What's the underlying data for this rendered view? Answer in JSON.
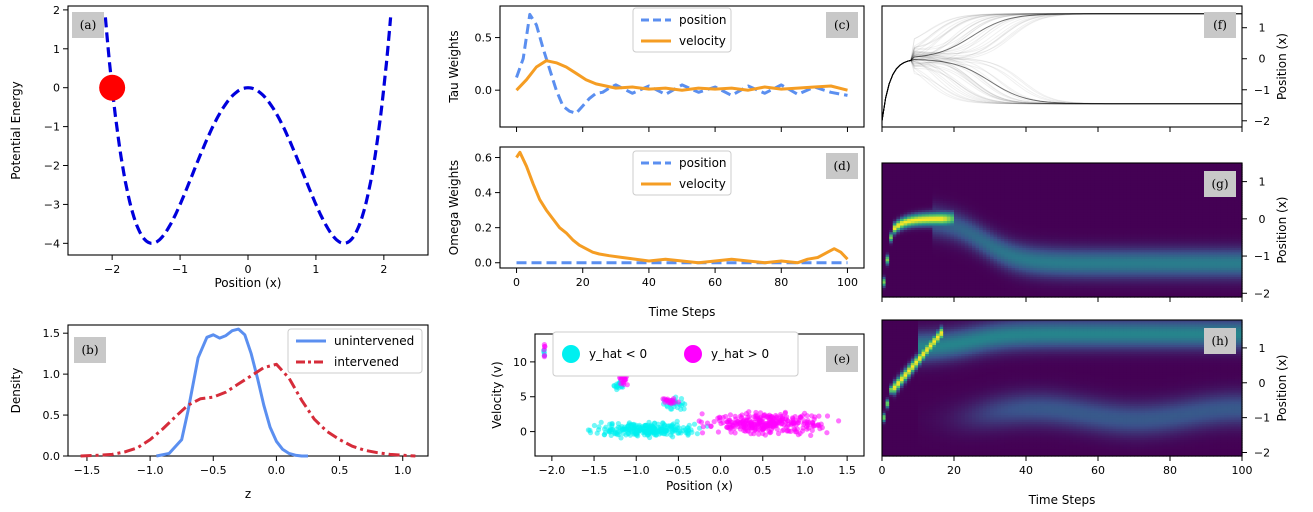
{
  "chart_data": [
    {
      "id": "a",
      "panel_label": "(a)",
      "type": "line",
      "xlabel": "Position (x)",
      "ylabel": "Potential Energy",
      "xlim": [
        -2.65,
        2.65
      ],
      "ylim": [
        -4.3,
        2.1
      ],
      "xticks": [
        -2,
        -1,
        0,
        1,
        2
      ],
      "yticks": [
        -4,
        -3,
        -2,
        -1,
        0,
        1,
        2
      ],
      "function": "x^4 - 4x^2",
      "x_range": [
        -2.1,
        2.1
      ],
      "marker": {
        "x": -2.0,
        "y": 0.0,
        "color": "#ff0000"
      },
      "series_color": "#0000dd"
    },
    {
      "id": "b",
      "panel_label": "(b)",
      "type": "line",
      "xlabel": "z",
      "ylabel": "Density",
      "xlim": [
        -1.65,
        1.2
      ],
      "ylim": [
        0,
        1.6
      ],
      "xticks": [
        -1.5,
        -1.0,
        -0.5,
        0.0,
        0.5,
        1.0
      ],
      "yticks": [
        0.0,
        0.5,
        1.0,
        1.5
      ],
      "legend": "top-right",
      "series": [
        {
          "name": "unintervened",
          "color": "#5b8ff0",
          "dash": "solid",
          "x": [
            -0.95,
            -0.85,
            -0.75,
            -0.7,
            -0.62,
            -0.55,
            -0.5,
            -0.45,
            -0.4,
            -0.35,
            -0.3,
            -0.25,
            -0.2,
            -0.15,
            -0.1,
            -0.05,
            0.0,
            0.05,
            0.1,
            0.15,
            0.2,
            0.25
          ],
          "y": [
            0.0,
            0.03,
            0.2,
            0.55,
            1.2,
            1.45,
            1.48,
            1.44,
            1.47,
            1.53,
            1.55,
            1.48,
            1.25,
            0.95,
            0.62,
            0.35,
            0.18,
            0.08,
            0.03,
            0.01,
            0.0,
            0.0
          ]
        },
        {
          "name": "intervened",
          "color": "#d62c3a",
          "dash": "dashdot",
          "x": [
            -1.55,
            -1.4,
            -1.3,
            -1.2,
            -1.1,
            -1.0,
            -0.9,
            -0.8,
            -0.7,
            -0.6,
            -0.5,
            -0.4,
            -0.3,
            -0.2,
            -0.1,
            0.0,
            0.1,
            0.2,
            0.3,
            0.4,
            0.5,
            0.6,
            0.7,
            0.8,
            0.9,
            1.0,
            1.1
          ],
          "y": [
            0.0,
            0.01,
            0.02,
            0.05,
            0.1,
            0.2,
            0.33,
            0.48,
            0.62,
            0.7,
            0.72,
            0.78,
            0.88,
            0.98,
            1.08,
            1.12,
            0.95,
            0.68,
            0.45,
            0.3,
            0.2,
            0.12,
            0.07,
            0.04,
            0.02,
            0.01,
            0.0
          ]
        }
      ]
    },
    {
      "id": "c",
      "panel_label": "(c)",
      "type": "line",
      "xlabel": "",
      "ylabel": "Tau Weights",
      "xlim": [
        -5,
        105
      ],
      "ylim": [
        -0.35,
        0.8
      ],
      "xticks": [
        0,
        20,
        40,
        60,
        80,
        100
      ],
      "yticks": [
        0.0,
        0.5
      ],
      "legend": "top-center",
      "series": [
        {
          "name": "position",
          "color": "#5b8ff0",
          "dash": "dashed",
          "x": [
            0,
            2,
            4,
            6,
            8,
            10,
            12,
            14,
            16,
            18,
            20,
            22,
            24,
            26,
            28,
            30,
            35,
            40,
            45,
            50,
            55,
            60,
            65,
            70,
            75,
            80,
            85,
            90,
            95,
            100
          ],
          "y": [
            0.12,
            0.3,
            0.72,
            0.62,
            0.4,
            0.2,
            0.0,
            -0.15,
            -0.2,
            -0.22,
            -0.15,
            -0.08,
            -0.03,
            -0.02,
            0.02,
            0.05,
            -0.03,
            0.04,
            -0.04,
            0.05,
            -0.02,
            0.03,
            -0.05,
            0.04,
            -0.03,
            0.05,
            -0.04,
            0.03,
            -0.02,
            -0.05
          ]
        },
        {
          "name": "velocity",
          "color": "#f59d23",
          "dash": "solid",
          "x": [
            0,
            3,
            6,
            9,
            12,
            15,
            18,
            21,
            24,
            27,
            30,
            35,
            40,
            45,
            50,
            55,
            60,
            65,
            70,
            75,
            80,
            85,
            90,
            95,
            100
          ],
          "y": [
            0.0,
            0.1,
            0.22,
            0.28,
            0.26,
            0.22,
            0.16,
            0.1,
            0.06,
            0.04,
            0.02,
            0.03,
            0.01,
            0.02,
            0.0,
            0.02,
            0.01,
            0.02,
            0.0,
            0.03,
            0.01,
            0.02,
            0.03,
            0.04,
            0.0
          ]
        }
      ]
    },
    {
      "id": "d",
      "panel_label": "(d)",
      "type": "line",
      "xlabel": "Time Steps",
      "ylabel": "Omega Weights",
      "xlim": [
        -5,
        105
      ],
      "ylim": [
        -0.03,
        0.66
      ],
      "xticks": [
        0,
        20,
        40,
        60,
        80,
        100
      ],
      "yticks": [
        0.0,
        0.2,
        0.4,
        0.6
      ],
      "legend": "top-center",
      "series": [
        {
          "name": "position",
          "color": "#5b8ff0",
          "dash": "dashed",
          "x": [
            0,
            100
          ],
          "y": [
            0.0,
            0.0
          ]
        },
        {
          "name": "velocity",
          "color": "#f59d23",
          "dash": "solid",
          "x": [
            0,
            1,
            3,
            5,
            7,
            9,
            11,
            13,
            15,
            17,
            19,
            21,
            23,
            25,
            28,
            32,
            36,
            40,
            45,
            50,
            55,
            60,
            65,
            70,
            75,
            80,
            85,
            88,
            91,
            94,
            96,
            98,
            100
          ],
          "y": [
            0.6,
            0.63,
            0.55,
            0.45,
            0.36,
            0.3,
            0.25,
            0.2,
            0.17,
            0.13,
            0.1,
            0.08,
            0.06,
            0.05,
            0.04,
            0.03,
            0.02,
            0.01,
            0.02,
            0.01,
            0.0,
            0.01,
            0.02,
            0.01,
            0.0,
            0.01,
            0.0,
            0.02,
            0.03,
            0.06,
            0.08,
            0.06,
            0.02
          ]
        }
      ]
    },
    {
      "id": "e",
      "panel_label": "(e)",
      "type": "scatter",
      "xlabel": "Position (x)",
      "ylabel": "Velocity (v)",
      "xlim": [
        -2.2,
        1.7
      ],
      "ylim": [
        -3.5,
        14.0
      ],
      "xticks": [
        -2.0,
        -1.5,
        -1.0,
        -0.5,
        0.0,
        0.5,
        1.0,
        1.5
      ],
      "yticks": [
        0,
        5,
        10
      ],
      "legend": "top-center",
      "series": [
        {
          "name": "y_hat < 0",
          "color": "#00f0f0",
          "clusters": [
            {
              "x": [
                -1.75,
                -0.05
              ],
              "y": [
                -1.0,
                1.5
              ],
              "n": 260
            },
            {
              "x": [
                -0.75,
                -0.35
              ],
              "y": [
                2.8,
                5.0
              ],
              "n": 30
            },
            {
              "x": [
                -1.3,
                -1.1
              ],
              "y": [
                5.8,
                7.6
              ],
              "n": 20
            },
            {
              "x": [
                -2.1,
                -2.08
              ],
              "y": [
                9.6,
                12.5
              ],
              "n": 6
            }
          ]
        },
        {
          "name": "y_hat > 0",
          "color": "#ff00ff",
          "clusters": [
            {
              "x": [
                -0.45,
                1.55
              ],
              "y": [
                -0.6,
                3.0
              ],
              "n": 300
            },
            {
              "x": [
                -0.75,
                -0.45
              ],
              "y": [
                3.5,
                5.0
              ],
              "n": 18
            },
            {
              "x": [
                -1.25,
                -1.05
              ],
              "y": [
                6.5,
                8.2
              ],
              "n": 18
            },
            {
              "x": [
                -2.1,
                -2.08
              ],
              "y": [
                10.5,
                13.0
              ],
              "n": 6
            }
          ]
        }
      ]
    },
    {
      "id": "f",
      "panel_label": "(f)",
      "type": "line",
      "xlabel": "",
      "ylabel": "Position (x)",
      "xlim": [
        0,
        100
      ],
      "ylim": [
        -2.2,
        1.7
      ],
      "xticks": [
        0,
        20,
        40,
        60,
        80,
        100
      ],
      "yticks": [
        -2,
        -1,
        0,
        1
      ],
      "y_axis_side": "right",
      "series_color": "#000000",
      "trajectories": {
        "count": 60,
        "start": -2.0,
        "peak_x": 8,
        "peak_y": 0.0,
        "upper": 1.45,
        "lower": -1.45
      }
    },
    {
      "id": "g",
      "panel_label": "(g)",
      "type": "heatmap",
      "xlabel": "",
      "ylabel": "Position (x)",
      "xlim": [
        0,
        100
      ],
      "ylim": [
        -2.1,
        1.5
      ],
      "xticks": [
        0,
        20,
        40,
        60,
        80,
        100
      ],
      "yticks": [
        -2,
        -1,
        0,
        1
      ],
      "y_axis_side": "right",
      "colormap": "viridis"
    },
    {
      "id": "h",
      "panel_label": "(h)",
      "type": "heatmap",
      "xlabel": "Time Steps",
      "ylabel": "Position (x)",
      "xlim": [
        0,
        100
      ],
      "ylim": [
        -2.1,
        1.8
      ],
      "xticks": [
        0,
        20,
        40,
        60,
        80,
        100
      ],
      "yticks": [
        -2,
        -1,
        0,
        1
      ],
      "y_axis_side": "right",
      "colormap": "viridis"
    }
  ]
}
